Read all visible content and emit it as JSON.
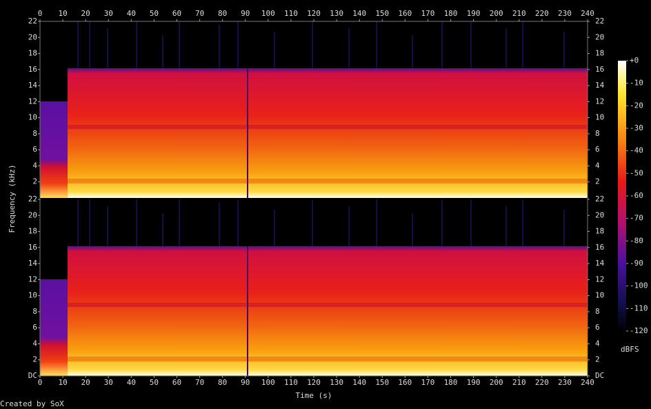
{
  "chart_data": {
    "type": "spectrogram",
    "xlabel": "Time (s)",
    "ylabel": "Frequency (kHz)",
    "xlim": [
      0,
      240
    ],
    "xticks": [
      0,
      10,
      20,
      30,
      40,
      50,
      60,
      70,
      80,
      90,
      100,
      110,
      120,
      130,
      140,
      150,
      160,
      170,
      180,
      190,
      200,
      210,
      220,
      230,
      240
    ],
    "channels": [
      {
        "ylim": [
          0,
          22
        ],
        "yticks": [
          2,
          4,
          6,
          8,
          10,
          12,
          14,
          16,
          18,
          20,
          22
        ]
      },
      {
        "ylim": [
          0,
          22
        ],
        "yticks": [
          {
            "value": 0,
            "label": "DC"
          },
          2,
          4,
          6,
          8,
          10,
          12,
          14,
          16,
          18,
          20,
          22
        ]
      }
    ],
    "colorbar": {
      "label": "dBFS",
      "zlim": [
        -120,
        0
      ],
      "zticks": [
        {
          "value": 0,
          "label": "+0"
        },
        -10,
        -20,
        -30,
        -40,
        -50,
        -60,
        -70,
        -80,
        -90,
        -100,
        -110,
        -120
      ]
    },
    "footer": "Created by SoX"
  }
}
